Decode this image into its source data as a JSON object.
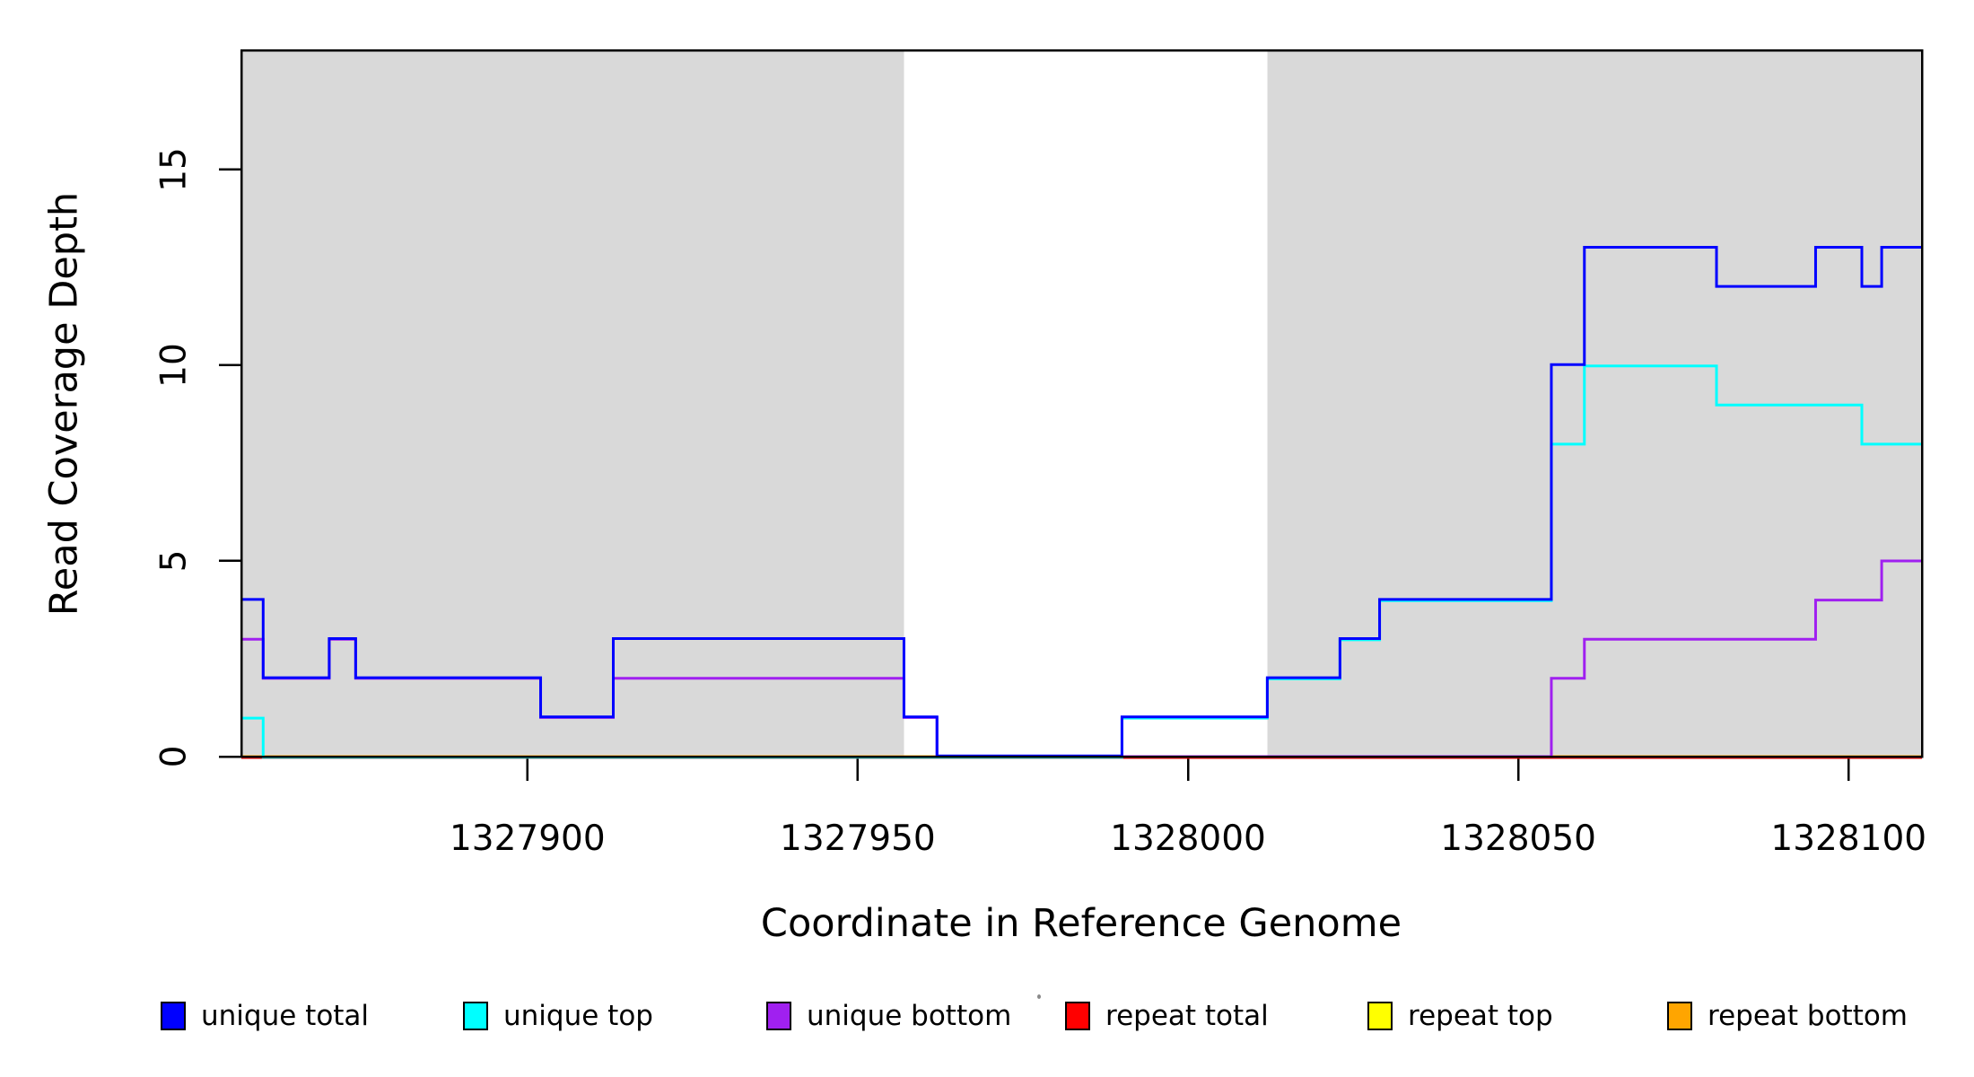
{
  "figure": {
    "background": "#ffffff",
    "plot_background_bands": "#d9d9d9"
  },
  "chart_data": {
    "type": "line",
    "step": true,
    "title": "",
    "xlabel": "Coordinate in Reference Genome",
    "ylabel": "Read Coverage Depth",
    "xlim": [
      1327856.7,
      1328111.1
    ],
    "ylim": [
      0,
      18.05
    ],
    "x_ticks": [
      1327900,
      1327950,
      1328000,
      1328050,
      1328100
    ],
    "y_ticks": [
      0,
      5,
      10,
      15
    ],
    "grid": false,
    "legend_position": "bottom-horizontal",
    "shaded_regions": [
      {
        "x0": 1327856.7,
        "x1": 1327957,
        "color": "#d9d9d9"
      },
      {
        "x0": 1328012.0,
        "x1": 1328111.1,
        "color": "#d9d9d9"
      }
    ],
    "series": [
      {
        "name": "unique total",
        "color": "#0000ff",
        "points": [
          [
            1327856.7,
            4
          ],
          [
            1327860,
            2
          ],
          [
            1327870,
            3
          ],
          [
            1327874,
            2
          ],
          [
            1327902,
            1
          ],
          [
            1327913,
            3
          ],
          [
            1327957,
            1
          ],
          [
            1327962,
            0
          ],
          [
            1327990,
            1
          ],
          [
            1328012,
            2
          ],
          [
            1328023,
            3
          ],
          [
            1328029,
            4
          ],
          [
            1328055,
            10
          ],
          [
            1328060,
            13
          ],
          [
            1328080,
            12
          ],
          [
            1328095,
            13
          ],
          [
            1328102,
            12
          ],
          [
            1328105,
            13
          ]
        ]
      },
      {
        "name": "unique top",
        "color": "#00ffff",
        "points": [
          [
            1327856.7,
            1
          ],
          [
            1327860,
            0
          ],
          [
            1327990,
            1
          ],
          [
            1328012,
            2
          ],
          [
            1328023,
            3
          ],
          [
            1328029,
            4
          ],
          [
            1328055,
            8
          ],
          [
            1328060,
            10
          ],
          [
            1328080,
            9
          ],
          [
            1328102,
            8
          ]
        ]
      },
      {
        "name": "unique bottom",
        "color": "#a020f0",
        "points": [
          [
            1327856.7,
            3
          ],
          [
            1327860,
            2
          ],
          [
            1327870,
            3
          ],
          [
            1327874,
            2
          ],
          [
            1327902,
            1
          ],
          [
            1327913,
            2
          ],
          [
            1327957,
            1
          ],
          [
            1327962,
            0
          ],
          [
            1328055,
            2
          ],
          [
            1328060,
            3
          ],
          [
            1328095,
            4
          ],
          [
            1328105,
            5
          ]
        ]
      },
      {
        "name": "repeat total",
        "color": "#ff0000",
        "points": [
          [
            1327856.7,
            0
          ]
        ]
      },
      {
        "name": "repeat top",
        "color": "#ffff00",
        "points": [
          [
            1327856.7,
            0
          ]
        ]
      },
      {
        "name": "repeat bottom",
        "color": "#ffa500",
        "points": [
          [
            1327856.7,
            0
          ]
        ]
      }
    ]
  },
  "legend": {
    "items": [
      {
        "label": "unique total",
        "color": "#0000ff"
      },
      {
        "label": "unique top",
        "color": "#00ffff"
      },
      {
        "label": "unique bottom",
        "color": "#a020f0"
      },
      {
        "label": "repeat total",
        "color": "#ff0000"
      },
      {
        "label": "repeat top",
        "color": "#ffff00"
      },
      {
        "label": "repeat bottom",
        "color": "#ffa500"
      }
    ]
  }
}
